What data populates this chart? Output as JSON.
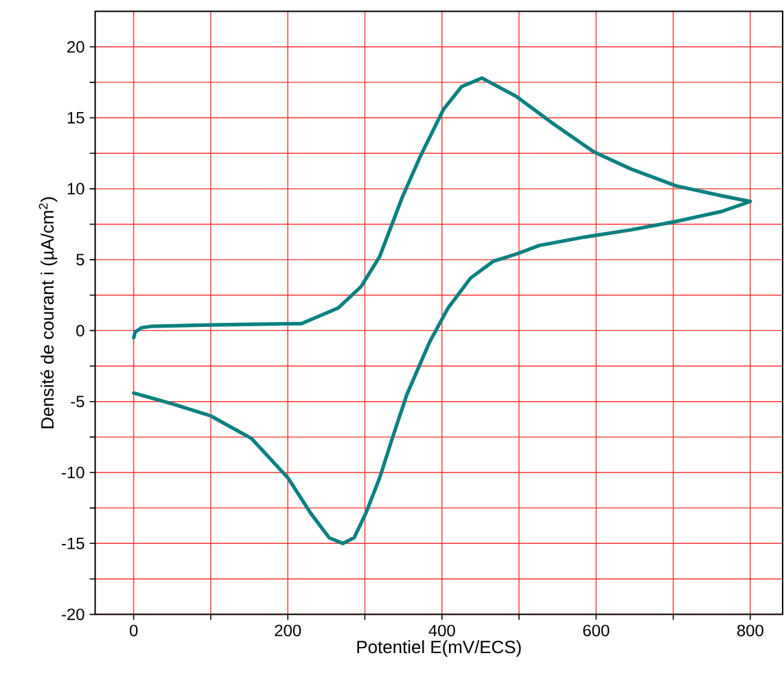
{
  "chart_data": {
    "type": "line",
    "xlabel": "Potentiel E(mV/ECS)",
    "ylabel": "Densité de courant  i (µA/cm$^{2}$)",
    "xlim": [
      -50,
      842
    ],
    "ylim": [
      -20,
      22.5
    ],
    "xticks": [
      0,
      {
        "value": 100,
        "label": null
      },
      200,
      {
        "value": 300,
        "label": null
      },
      400,
      {
        "value": 500,
        "label": null
      },
      600,
      {
        "value": 700,
        "label": null
      },
      800
    ],
    "yticks": [
      -20,
      {
        "value": -17.5,
        "label": null
      },
      -15,
      {
        "value": -12.5,
        "label": null
      },
      -10,
      {
        "value": -7.5,
        "label": null
      },
      -5,
      {
        "value": -2.5,
        "label": null
      },
      0,
      {
        "value": 2.5,
        "label": null
      },
      5,
      {
        "value": 7.5,
        "label": null
      },
      10,
      {
        "value": 12.5,
        "label": null
      },
      15,
      {
        "value": 17.5,
        "label": null
      },
      20
    ],
    "grid": true,
    "marker": "none",
    "line_style": "solid",
    "series": [
      {
        "color": "#0a8080",
        "x": [
          0,
          2,
          10,
          22.6,
          100,
          218,
          265.5,
          295,
          319,
          348.5,
          372,
          402,
          425.5,
          452,
          496.7,
          544,
          597,
          644.8,
          704,
          763,
          800,
          763,
          704,
          644.8,
          585.6,
          526,
          496.7,
          467,
          437,
          408,
          384,
          372,
          354.5,
          336.7,
          319,
          301,
          286,
          271.5,
          253.7,
          230,
          200.4,
          152.9,
          99.6,
          52.3,
          0
        ],
        "values": [
          -0.5,
          -0.1,
          0.2,
          0.3,
          0.4,
          0.5,
          1.6,
          3.1,
          5.2,
          9.4,
          12.3,
          15.6,
          17.2,
          17.8,
          16.5,
          14.6,
          12.6,
          11.4,
          10.2,
          9.5,
          9.1,
          8.4,
          7.7,
          7.1,
          6.6,
          6.0,
          5.4,
          4.9,
          3.7,
          1.6,
          -0.8,
          -2.3,
          -4.5,
          -7.4,
          -10.4,
          -12.9,
          -14.6,
          -15.0,
          -14.6,
          -12.9,
          -10.4,
          -7.6,
          -6.0,
          -5.2,
          -4.4
        ]
      }
    ]
  }
}
